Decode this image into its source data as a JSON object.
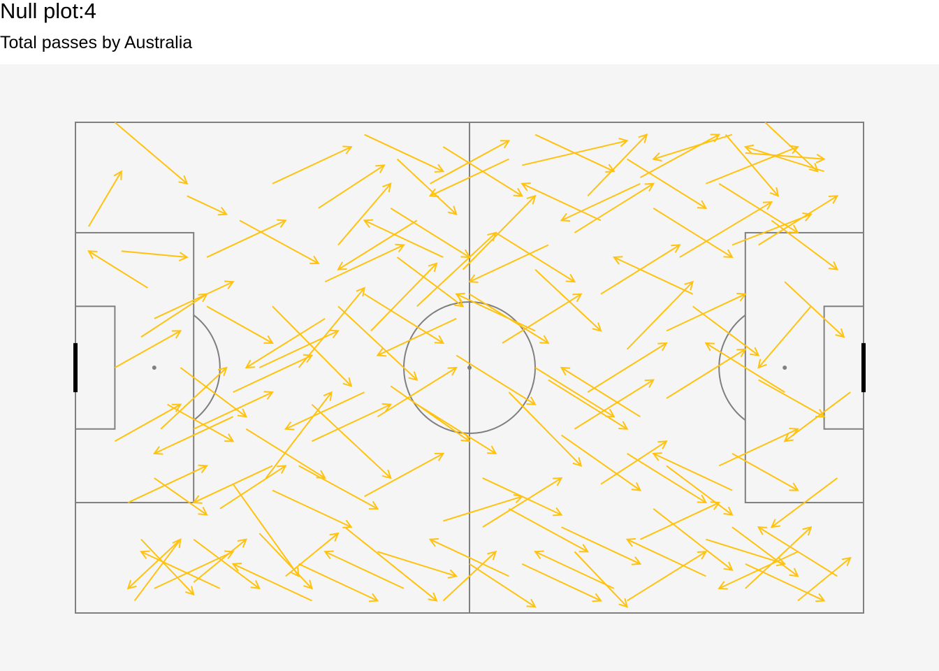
{
  "chart": {
    "title": "Null plot:4",
    "subtitle": "Total passes by Australia"
  },
  "colors": {
    "background": "#f5f5f5",
    "pitch_lines": "#7f7f7f",
    "goal": "#000000",
    "pass_arrow": "#ffc20e"
  },
  "chart_data": {
    "type": "pass map (arrows on football pitch)",
    "title": "Null plot:4",
    "subtitle": "Total passes by Australia",
    "xlim": [
      0,
      120
    ],
    "ylim": [
      0,
      80
    ],
    "pitch": "full pitch, attack direction left to right",
    "series": [
      {
        "name": "",
        "segments": [
          [
            6,
            0,
            17,
            10
          ],
          [
            2,
            17,
            7,
            8
          ],
          [
            11,
            27,
            2,
            21
          ],
          [
            7,
            21,
            17,
            22
          ],
          [
            17,
            12,
            23,
            15
          ],
          [
            6,
            52,
            16,
            46
          ],
          [
            13,
            50,
            23,
            40
          ],
          [
            29,
            58,
            39,
            44
          ],
          [
            24,
            59,
            34,
            74
          ],
          [
            10,
            35,
            20,
            28
          ],
          [
            28,
            67,
            36,
            76
          ],
          [
            18,
            68,
            28,
            76
          ],
          [
            10,
            68,
            18,
            77
          ],
          [
            41,
            66,
            55,
            78
          ],
          [
            9,
            78,
            16,
            68
          ],
          [
            18,
            75,
            26,
            68
          ],
          [
            32,
            74,
            40,
            67
          ],
          [
            34,
            40,
            44,
            27
          ],
          [
            30,
            30,
            42,
            43
          ],
          [
            36,
            46,
            48,
            58
          ],
          [
            48,
            43,
            60,
            52
          ],
          [
            60,
            72,
            70,
            79
          ],
          [
            76,
            70,
            84,
            79
          ],
          [
            100,
            66,
            110,
            74
          ],
          [
            110,
            78,
            118,
            71
          ],
          [
            102,
            76,
            112,
            66
          ],
          [
            88,
            63,
            100,
            73
          ],
          [
            74,
            51,
            86,
            60
          ],
          [
            70,
            40,
            82,
            48
          ],
          [
            84,
            37,
            94,
            26
          ],
          [
            92,
            22,
            106,
            13
          ],
          [
            96,
            10,
            110,
            4
          ],
          [
            102,
            5,
            114,
            6
          ],
          [
            105,
            0,
            113,
            8
          ],
          [
            99,
            2,
            107,
            12
          ],
          [
            86,
            9,
            98,
            2
          ],
          [
            78,
            12,
            87,
            2
          ],
          [
            68,
            7,
            84,
            3
          ],
          [
            54,
            10,
            66,
            3
          ],
          [
            49,
            6,
            58,
            15
          ],
          [
            37,
            14,
            47,
            7
          ],
          [
            25,
            16,
            37,
            23
          ],
          [
            20,
            30,
            30,
            36
          ],
          [
            45,
            34,
            55,
            23
          ],
          [
            49,
            22,
            59,
            30
          ],
          [
            59,
            24,
            70,
            12
          ],
          [
            65,
            36,
            77,
            28
          ],
          [
            66,
            44,
            77,
            56
          ],
          [
            78,
            44,
            90,
            36
          ],
          [
            90,
            45,
            102,
            37
          ],
          [
            104,
            42,
            114,
            48
          ],
          [
            100,
            54,
            110,
            60
          ],
          [
            90,
            56,
            100,
            64
          ],
          [
            80,
            59,
            90,
            52
          ],
          [
            66,
            63,
            78,
            70
          ],
          [
            56,
            65,
            68,
            61
          ],
          [
            44,
            61,
            56,
            54
          ],
          [
            34,
            56,
            46,
            63
          ],
          [
            22,
            63,
            32,
            56
          ],
          [
            12,
            58,
            20,
            64
          ],
          [
            16,
            40,
            26,
            48
          ],
          [
            24,
            44,
            36,
            38
          ],
          [
            40,
            30,
            52,
            42
          ],
          [
            52,
            30,
            64,
            18
          ],
          [
            64,
            18,
            76,
            26
          ],
          [
            76,
            18,
            88,
            10
          ],
          [
            88,
            14,
            100,
            22
          ],
          [
            100,
            20,
            112,
            15
          ],
          [
            108,
            26,
            117,
            35
          ],
          [
            94,
            30,
            104,
            38
          ],
          [
            80,
            28,
            92,
            20
          ],
          [
            70,
            24,
            80,
            34
          ],
          [
            58,
            38,
            70,
            46
          ],
          [
            46,
            48,
            58,
            40
          ],
          [
            36,
            52,
            48,
            46
          ],
          [
            26,
            50,
            38,
            58
          ],
          [
            14,
            46,
            24,
            52
          ],
          [
            6,
            40,
            16,
            34
          ],
          [
            12,
            32,
            24,
            26
          ],
          [
            20,
            22,
            32,
            16
          ],
          [
            30,
            10,
            42,
            4
          ],
          [
            44,
            2,
            56,
            8
          ],
          [
            56,
            4,
            68,
            12
          ],
          [
            70,
            2,
            82,
            8
          ],
          [
            84,
            6,
            96,
            14
          ],
          [
            98,
            10,
            110,
            18
          ],
          [
            106,
            16,
            116,
            24
          ],
          [
            112,
            30,
            104,
            40
          ],
          [
            118,
            44,
            108,
            52
          ],
          [
            116,
            58,
            106,
            66
          ],
          [
            110,
            70,
            98,
            76
          ],
          [
            96,
            74,
            84,
            68
          ],
          [
            82,
            76,
            70,
            70
          ],
          [
            66,
            74,
            54,
            68
          ],
          [
            50,
            76,
            38,
            70
          ],
          [
            36,
            78,
            24,
            72
          ],
          [
            22,
            76,
            10,
            70
          ],
          [
            8,
            62,
            20,
            56
          ],
          [
            18,
            50,
            30,
            44
          ],
          [
            28,
            40,
            40,
            34
          ],
          [
            38,
            26,
            50,
            20
          ],
          [
            48,
            14,
            60,
            22
          ],
          [
            60,
            28,
            72,
            36
          ],
          [
            72,
            42,
            84,
            50
          ],
          [
            84,
            54,
            96,
            62
          ],
          [
            96,
            68,
            108,
            72
          ],
          [
            40,
            20,
            48,
            10
          ],
          [
            44,
            28,
            56,
            36
          ],
          [
            52,
            46,
            64,
            54
          ],
          [
            62,
            58,
            74,
            64
          ],
          [
            74,
            66,
            86,
            72
          ],
          [
            86,
            68,
            98,
            62
          ],
          [
            98,
            56,
            110,
            50
          ],
          [
            108,
            44,
            96,
            36
          ],
          [
            94,
            28,
            82,
            22
          ],
          [
            80,
            16,
            68,
            10
          ],
          [
            66,
            6,
            54,
            12
          ],
          [
            52,
            16,
            40,
            24
          ],
          [
            38,
            32,
            26,
            40
          ],
          [
            24,
            48,
            12,
            54
          ],
          [
            30,
            60,
            42,
            66
          ],
          [
            46,
            70,
            58,
            74
          ],
          [
            62,
            66,
            74,
            58
          ],
          [
            76,
            50,
            88,
            42
          ],
          [
            90,
            34,
            102,
            28
          ],
          [
            104,
            20,
            116,
            12
          ],
          [
            114,
            8,
            102,
            4
          ],
          [
            100,
            2,
            88,
            6
          ],
          [
            86,
            10,
            74,
            16
          ],
          [
            72,
            20,
            60,
            26
          ],
          [
            58,
            32,
            46,
            38
          ],
          [
            44,
            44,
            32,
            50
          ],
          [
            30,
            56,
            18,
            62
          ],
          [
            16,
            68,
            8,
            76
          ],
          [
            12,
            76,
            24,
            70
          ],
          [
            34,
            72,
            46,
            78
          ],
          [
            56,
            78,
            64,
            70
          ],
          [
            68,
            72,
            80,
            78
          ],
          [
            84,
            78,
            96,
            70
          ],
          [
            102,
            72,
            114,
            78
          ],
          [
            116,
            74,
            104,
            66
          ],
          [
            100,
            60,
            88,
            54
          ],
          [
            86,
            48,
            74,
            40
          ],
          [
            70,
            34,
            58,
            28
          ],
          [
            56,
            22,
            44,
            16
          ]
        ]
      }
    ]
  }
}
